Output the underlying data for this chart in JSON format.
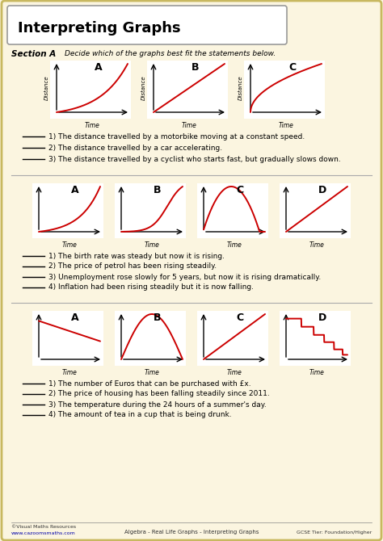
{
  "title": "Interpreting Graphs",
  "bg_outer": "#fbf5e0",
  "border_color": "#c8b860",
  "red_color": "#cc0000",
  "section_a_label": "Section A",
  "section_a_text": "Decide which of the graphs best fit the statements below.",
  "section1_graphs": [
    {
      "label": "A",
      "shape": "exponential_up"
    },
    {
      "label": "B",
      "shape": "linear_up"
    },
    {
      "label": "C",
      "shape": "sqrt_up"
    }
  ],
  "section1_questions": [
    "1) The distance travelled by a motorbike moving at a constant speed.",
    "2) The distance travelled by a car accelerating.",
    "3) The distance travelled by a cyclist who starts fast, but gradually slows down."
  ],
  "section2_graphs": [
    {
      "label": "A",
      "shape": "exp_up_steep"
    },
    {
      "label": "B",
      "shape": "s_curve"
    },
    {
      "label": "C",
      "shape": "hump"
    },
    {
      "label": "D",
      "shape": "linear_up_small"
    }
  ],
  "section2_questions": [
    "1) The birth rate was steady but now it is rising.",
    "2) The price of petrol has been rising steadily.",
    "3) Unemployment rose slowly for 5 years, but now it is rising dramatically.",
    "4) Inflation had been rising steadily but it is now falling."
  ],
  "section3_graphs": [
    {
      "label": "A",
      "shape": "linear_down"
    },
    {
      "label": "B",
      "shape": "circle_bump"
    },
    {
      "label": "C",
      "shape": "linear_up_steep"
    },
    {
      "label": "D",
      "shape": "step_down"
    }
  ],
  "section3_questions": [
    "1) The number of Euros that can be purchased with £x.",
    "2) The price of housing has been falling steadily since 2011.",
    "3) The temperature during the 24 hours of a summer's day.",
    "4) The amount of tea in a cup that is being drunk."
  ],
  "footer_left1": "©Visual Maths Resources",
  "footer_left2": "www.cazoomsmaths.com",
  "footer_center": "Algebra - Real Life Graphs - Interpreting Graphs",
  "footer_right": "GCSE Tier: Foundation/Higher"
}
